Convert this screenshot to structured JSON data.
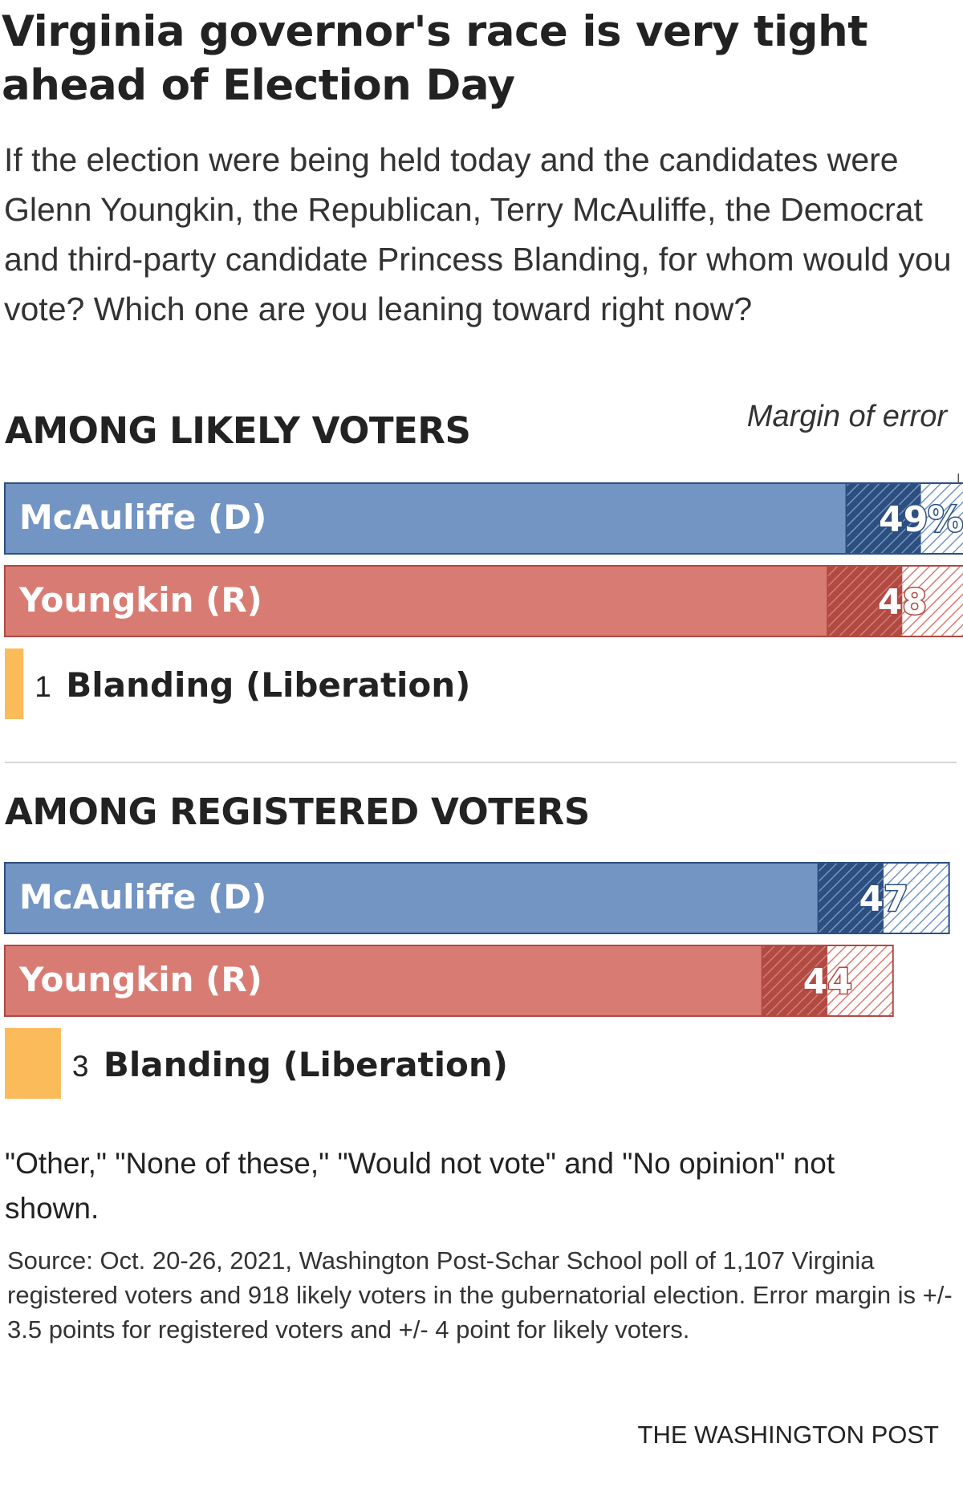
{
  "title": "Virginia governor's race is very tight ahead of Election Day",
  "subtitle": "If the election were being held today and the candidates were Glenn Youngkin, the Republican, Terry McAuliffe, the Democrat and third-party candidate Princess Blanding, for whom would you vote? Which one are you leaning toward right now?",
  "margin_of_error_label": "Margin of error",
  "note": "\"Other,\" \"None of these,\" \"Would not vote\" and \"No opinion\" not shown.",
  "source": "Source: Oct. 20-26, 2021, Washington Post-Schar School poll of 1,107 Virginia registered voters and 918 likely voters in the gubernatorial election. Error margin is +/- 3.5 points for registered voters and +/- 4 point for likely voters.",
  "credit": "THE WASHINGTON POST",
  "colors": {
    "democrat": "#7395c4",
    "democrat_dark": "#2c4f80",
    "republican": "#d87c73",
    "republican_dark": "#b04a43",
    "liberation": "#fbbb5b"
  },
  "chart_data": [
    {
      "type": "bar",
      "title": "AMONG LIKELY VOTERS",
      "orientation": "horizontal",
      "xlim": [
        0,
        56
      ],
      "margin_of_error": 4,
      "series": [
        {
          "name": "McAuliffe (D)",
          "value": 49,
          "value_label": "49%",
          "color": "#7395c4",
          "moe_color": "#2c4f80"
        },
        {
          "name": "Youngkin (R)",
          "value": 48,
          "value_label": "48",
          "color": "#d87c73",
          "moe_color": "#b04a43"
        },
        {
          "name": "Blanding (Liberation)",
          "value": 1,
          "value_label": "1",
          "color": "#fbbb5b"
        }
      ]
    },
    {
      "type": "bar",
      "title": "AMONG REGISTERED VOTERS",
      "orientation": "horizontal",
      "xlim": [
        0,
        56
      ],
      "margin_of_error": 3.5,
      "series": [
        {
          "name": "McAuliffe (D)",
          "value": 47,
          "value_label": "47",
          "color": "#7395c4",
          "moe_color": "#2c4f80"
        },
        {
          "name": "Youngkin (R)",
          "value": 44,
          "value_label": "44",
          "color": "#d87c73",
          "moe_color": "#b04a43"
        },
        {
          "name": "Blanding (Liberation)",
          "value": 3,
          "value_label": "3",
          "color": "#fbbb5b"
        }
      ]
    }
  ]
}
